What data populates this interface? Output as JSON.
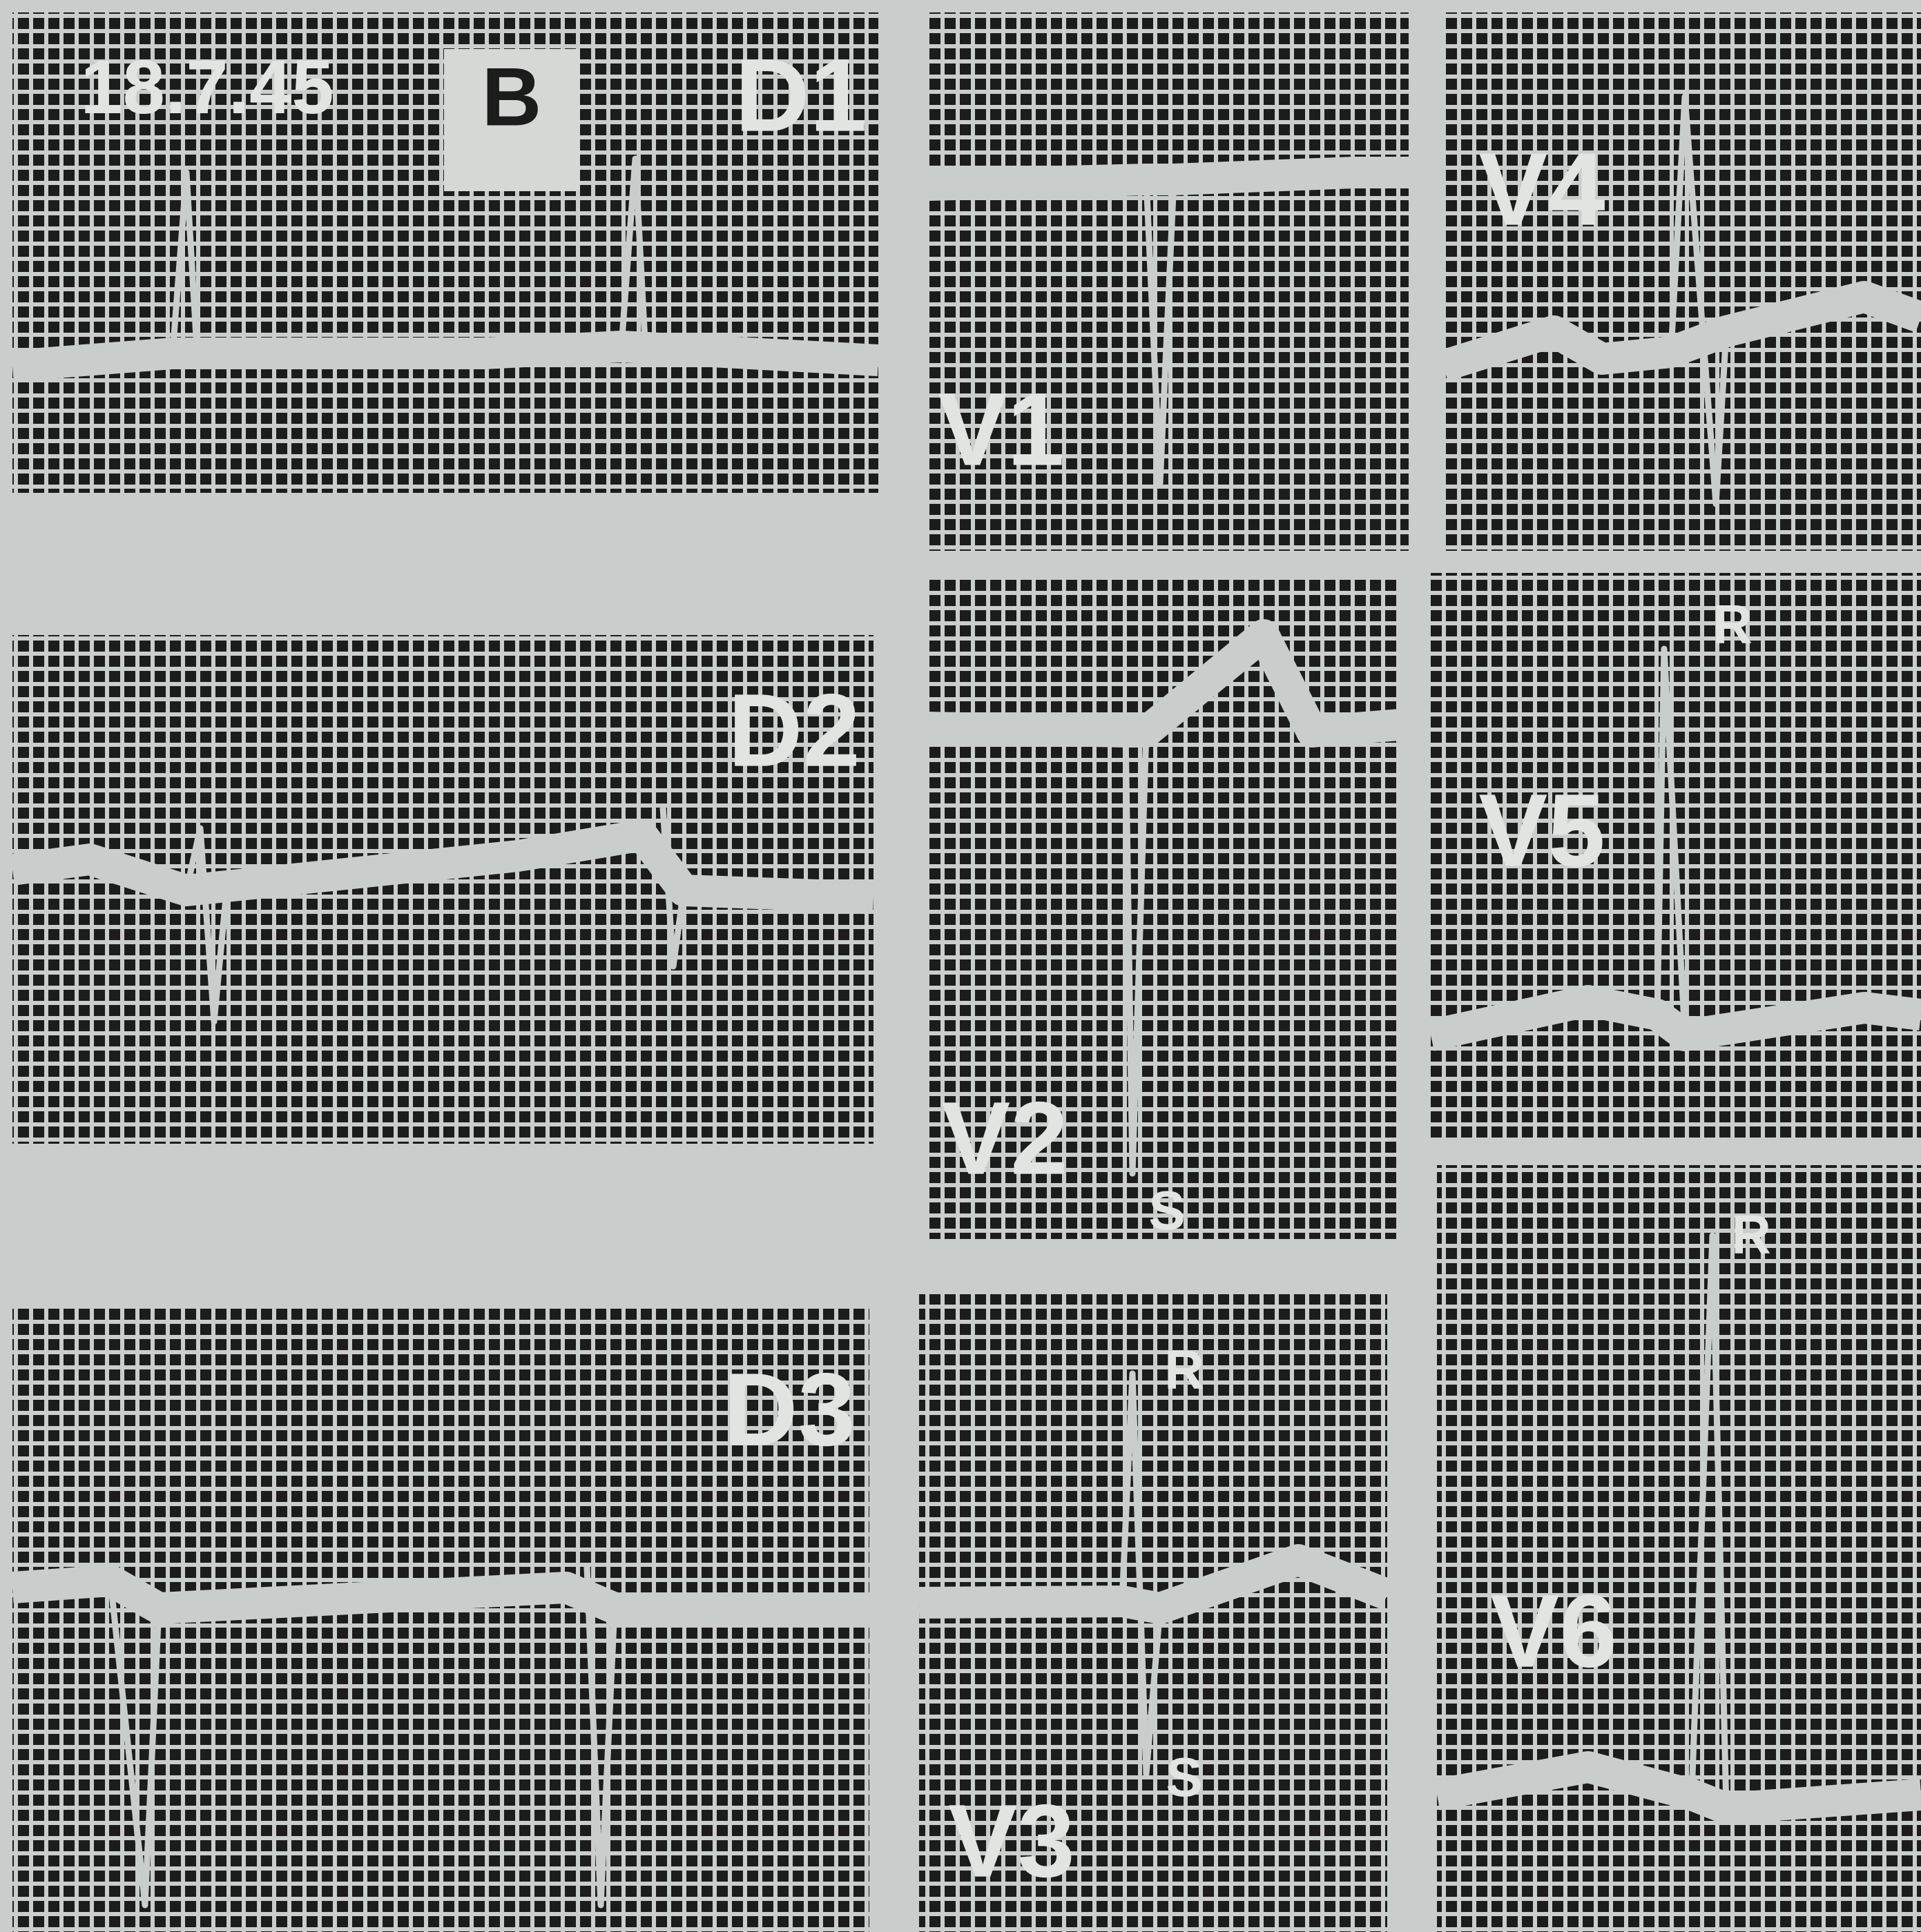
{
  "header": {
    "date": "18.7.45",
    "tag": "B"
  },
  "leads": [
    {
      "label": "D1"
    },
    {
      "label": "D2"
    },
    {
      "label": "D3"
    },
    {
      "label": "V1"
    },
    {
      "label": "V2",
      "waves": [
        "S"
      ]
    },
    {
      "label": "V3",
      "waves": [
        "R",
        "S"
      ]
    },
    {
      "label": "V4"
    },
    {
      "label": "V5",
      "waves": [
        "R"
      ]
    },
    {
      "label": "V6",
      "waves": [
        "R"
      ]
    }
  ]
}
